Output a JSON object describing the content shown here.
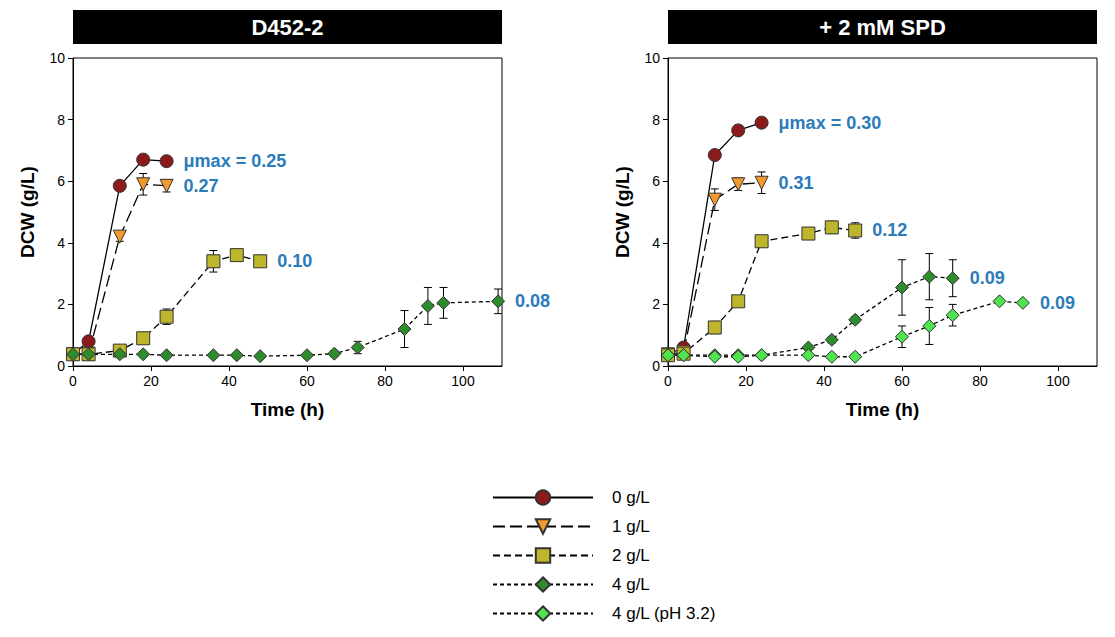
{
  "chart_data": [
    {
      "type": "line",
      "title": "D452-2",
      "xlabel": "Time (h)",
      "ylabel": "DCW (g/L)",
      "xlim": [
        0,
        110
      ],
      "xticks": [
        0,
        20,
        40,
        60,
        80,
        100
      ],
      "ylim": [
        0,
        10
      ],
      "yticks": [
        0,
        2,
        4,
        6,
        8,
        10
      ],
      "grid": false,
      "legend": "bottom",
      "series": [
        {
          "name": "0 g/L",
          "color": "#8b1a1a",
          "marker": "circle",
          "line_style": "solid",
          "x": [
            0,
            4,
            12,
            18,
            24
          ],
          "values": [
            0.38,
            0.8,
            5.85,
            6.7,
            6.65
          ],
          "errors": [
            0.05,
            0.05,
            0.1,
            0.1,
            0.1
          ],
          "annotation": "μmax = 0.25"
        },
        {
          "name": "1 g/L",
          "color": "#f39a2e",
          "marker": "triangle_down",
          "line_style": "long_dashed",
          "x": [
            0,
            4,
            12,
            18,
            24
          ],
          "values": [
            0.38,
            0.4,
            4.2,
            5.9,
            5.85
          ],
          "errors": [
            0.05,
            0.05,
            0.15,
            0.35,
            0.2
          ],
          "annotation": "0.27"
        },
        {
          "name": "2 g/L",
          "color": "#bdb52b",
          "marker": "square",
          "line_style": "dashed",
          "x": [
            0,
            4,
            12,
            18,
            24,
            36,
            42,
            48
          ],
          "values": [
            0.38,
            0.38,
            0.5,
            0.9,
            1.6,
            3.4,
            3.6,
            3.4
          ],
          "errors": [
            0.03,
            0.03,
            0.05,
            0.1,
            0.25,
            0.35,
            0.1,
            0.1
          ],
          "annotation": "0.10"
        },
        {
          "name": "4 g/L",
          "color": "#2e8b2e",
          "marker": "diamond",
          "line_style": "short_dashed",
          "x": [
            0,
            4,
            12,
            18,
            24,
            36,
            42,
            48,
            60,
            67,
            73,
            85,
            91,
            95,
            109
          ],
          "values": [
            0.38,
            0.38,
            0.38,
            0.38,
            0.35,
            0.35,
            0.35,
            0.32,
            0.35,
            0.4,
            0.6,
            1.2,
            1.95,
            2.05,
            2.1
          ],
          "errors": [
            0.05,
            0.05,
            0.05,
            0.05,
            0.05,
            0.05,
            0.05,
            0.05,
            0.05,
            0.1,
            0.2,
            0.6,
            0.6,
            0.5,
            0.4
          ],
          "annotation": "0.08"
        }
      ]
    },
    {
      "type": "line",
      "title": "+ 2 mM SPD",
      "xlabel": "Time (h)",
      "ylabel": "DCW (g/L)",
      "xlim": [
        0,
        110
      ],
      "xticks": [
        0,
        20,
        40,
        60,
        80,
        100
      ],
      "ylim": [
        0,
        10
      ],
      "yticks": [
        0,
        2,
        4,
        6,
        8,
        10
      ],
      "grid": false,
      "legend": "bottom",
      "series": [
        {
          "name": "0 g/L",
          "color": "#8b1a1a",
          "marker": "circle",
          "line_style": "solid",
          "x": [
            0,
            4,
            12,
            18,
            24
          ],
          "values": [
            0.38,
            0.6,
            6.85,
            7.65,
            7.9
          ],
          "errors": [
            0.05,
            0.05,
            0.1,
            0.1,
            0.1
          ],
          "annotation": "μmax = 0.30"
        },
        {
          "name": "1 g/L",
          "color": "#f39a2e",
          "marker": "triangle_down",
          "line_style": "long_dashed",
          "x": [
            0,
            4,
            12,
            18,
            24
          ],
          "values": [
            0.38,
            0.45,
            5.4,
            5.9,
            5.95
          ],
          "errors": [
            0.05,
            0.05,
            0.35,
            0.2,
            0.35
          ],
          "annotation": "0.31"
        },
        {
          "name": "2 g/L",
          "color": "#bdb52b",
          "marker": "square",
          "line_style": "dashed",
          "x": [
            0,
            4,
            12,
            18,
            24,
            36,
            42,
            48
          ],
          "values": [
            0.35,
            0.4,
            1.25,
            2.1,
            4.05,
            4.3,
            4.5,
            4.4
          ],
          "errors": [
            0.05,
            0.05,
            0.2,
            0.1,
            0.15,
            0.1,
            0.2,
            0.25
          ],
          "annotation": "0.12"
        },
        {
          "name": "4 g/L",
          "color": "#2e8b2e",
          "marker": "diamond",
          "line_style": "short_dashed",
          "x": [
            0,
            4,
            12,
            18,
            24,
            36,
            42,
            48,
            60,
            67,
            73
          ],
          "values": [
            0.35,
            0.35,
            0.35,
            0.35,
            0.35,
            0.6,
            0.85,
            1.5,
            2.55,
            2.9,
            2.85
          ],
          "errors": [
            0.05,
            0.05,
            0.05,
            0.05,
            0.05,
            0.05,
            0.1,
            0.1,
            0.9,
            0.75,
            0.6
          ],
          "annotation": "0.09"
        },
        {
          "name": "4 g/L (pH 3.2)",
          "color": "#4fe34f",
          "marker": "diamond",
          "line_style": "short_dashed",
          "x": [
            0,
            4,
            12,
            18,
            24,
            36,
            42,
            48,
            60,
            67,
            73,
            85,
            91
          ],
          "values": [
            0.35,
            0.35,
            0.3,
            0.3,
            0.35,
            0.35,
            0.3,
            0.3,
            0.95,
            1.3,
            1.65,
            2.1,
            2.05
          ],
          "errors": [
            0.05,
            0.05,
            0.05,
            0.05,
            0.05,
            0.05,
            0.05,
            0.05,
            0.35,
            0.6,
            0.35,
            0.05,
            0.05
          ],
          "annotation": "0.09"
        }
      ]
    }
  ]
}
